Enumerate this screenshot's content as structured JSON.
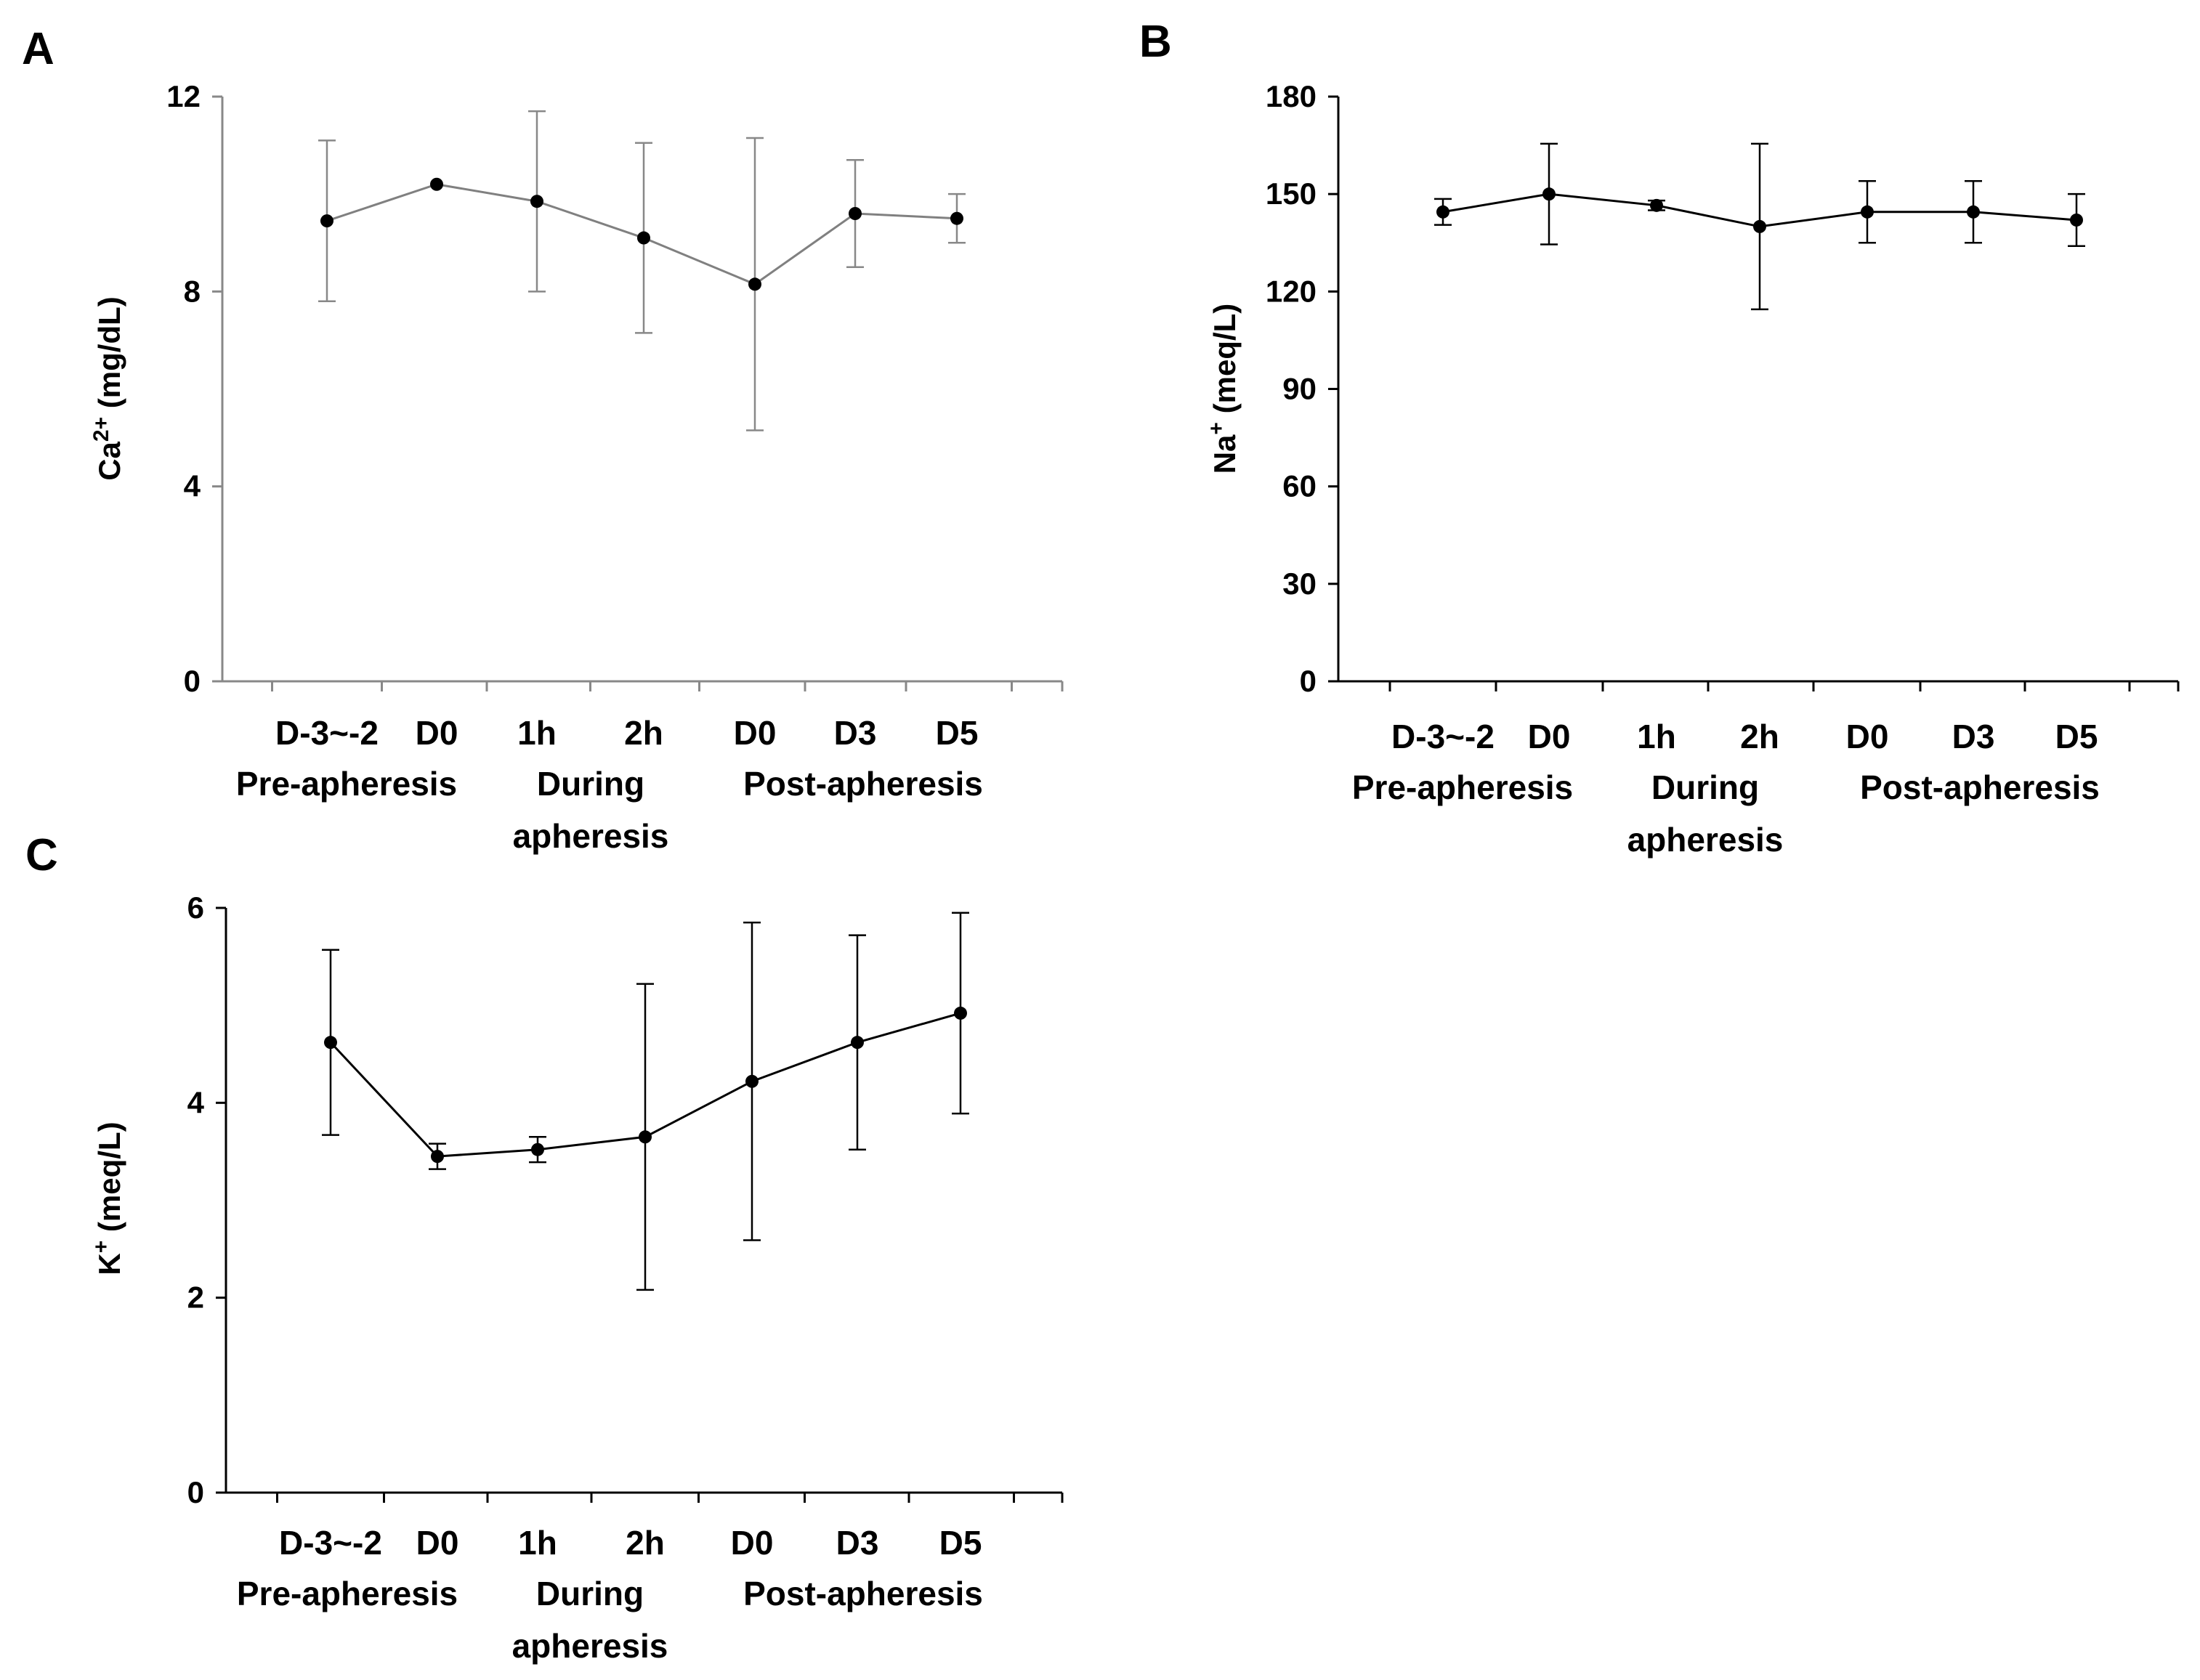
{
  "colors": {
    "panel_A_line": "#808080",
    "panel_B_line": "#000000",
    "panel_C_line": "#000000",
    "marker": "#000000"
  },
  "chart_data": [
    {
      "panel_label": "A",
      "type": "line",
      "title": "",
      "ylabel_main": "Ca",
      "ylabel_sup": "2+",
      "ylabel_tail": " (mg/dL)",
      "ylim": [
        0,
        12
      ],
      "yticks": [
        "0",
        "4",
        "8",
        "12"
      ],
      "categories": [
        "D-3~-2",
        "D0",
        "1h",
        "2h",
        "D0",
        "D3",
        "D5"
      ],
      "groups": [
        {
          "lines": [
            "Pre-apheresis"
          ]
        },
        {
          "lines": [
            "During",
            "apheresis"
          ]
        },
        {
          "lines": [
            "Post-apheresis"
          ]
        }
      ],
      "values": [
        9.45,
        10.2,
        9.85,
        9.1,
        8.15,
        9.6,
        9.5
      ],
      "error": [
        1.65,
        0.0,
        1.85,
        1.95,
        3.0,
        1.1,
        0.5
      ]
    },
    {
      "panel_label": "B",
      "type": "line",
      "title": "",
      "ylabel_main": "Na",
      "ylabel_sup": "+",
      "ylabel_tail": " (meq/L)",
      "ylim": [
        0,
        180
      ],
      "yticks": [
        "0",
        "30",
        "60",
        "90",
        "120",
        "150",
        "180"
      ],
      "categories": [
        "D-3~-2",
        "D0",
        "1h",
        "2h",
        "D0",
        "D3",
        "D5"
      ],
      "groups": [
        {
          "lines": [
            "Pre-apheresis"
          ]
        },
        {
          "lines": [
            "During",
            "apheresis"
          ]
        },
        {
          "lines": [
            "Post-apheresis"
          ]
        }
      ],
      "values": [
        144.5,
        150,
        146.5,
        140,
        144.5,
        144.5,
        142
      ],
      "error": [
        4,
        15.5,
        1.5,
        25.5,
        9.5,
        9.5,
        8
      ]
    },
    {
      "panel_label": "C",
      "type": "line",
      "title": "",
      "ylabel_main": "K",
      "ylabel_sup": "+",
      "ylabel_tail": " (meq/L)",
      "ylim": [
        0,
        6
      ],
      "yticks": [
        "0",
        "2",
        "4",
        "6"
      ],
      "categories": [
        "D-3~-2",
        "D0",
        "1h",
        "2h",
        "D0",
        "D3",
        "D5"
      ],
      "groups": [
        {
          "lines": [
            "Pre-apheresis"
          ]
        },
        {
          "lines": [
            "During",
            "apheresis"
          ]
        },
        {
          "lines": [
            "Post-apheresis"
          ]
        }
      ],
      "values": [
        4.62,
        3.45,
        3.52,
        3.65,
        4.22,
        4.62,
        4.92
      ],
      "error": [
        0.95,
        0.13,
        0.13,
        1.57,
        1.63,
        1.1,
        1.03
      ]
    }
  ]
}
